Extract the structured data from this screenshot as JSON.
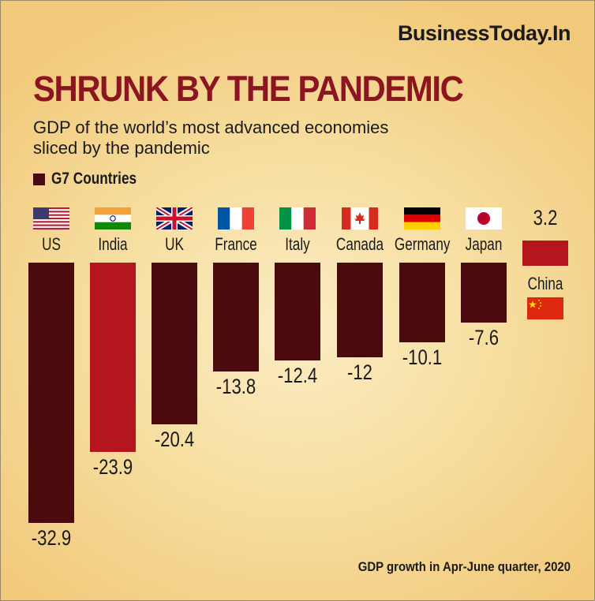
{
  "brand": "BusinessToday.In",
  "title": "SHRUNK BY THE PANDEMIC",
  "subtitle_line1": "GDP of the world’s most advanced economies",
  "subtitle_line2": "sliced by the pandemic",
  "legend_label": "G7 Countries",
  "footnote": "GDP growth in Apr-June quarter, 2020",
  "colors": {
    "g7_bar": "#4a0a0e",
    "highlight_bar": "#b5161e",
    "title": "#8b1520"
  },
  "chart_data": {
    "type": "bar",
    "title": "SHRUNK BY THE PANDEMIC",
    "ylabel": "GDP growth in Apr-June quarter, 2020",
    "categories": [
      "US",
      "India",
      "UK",
      "France",
      "Italy",
      "Canada",
      "Germany",
      "Japan",
      "China"
    ],
    "values": [
      -32.9,
      -23.9,
      -20.4,
      -13.8,
      -12.4,
      -12,
      -10.1,
      -7.6,
      3.2
    ],
    "value_labels": [
      "-32.9",
      "-23.9",
      "-20.4",
      "-13.8",
      "-12.4",
      "-12",
      "-10.1",
      "-7.6",
      "3.2"
    ],
    "g7": [
      true,
      false,
      true,
      true,
      true,
      true,
      true,
      true,
      false
    ],
    "flags": [
      "us-flag",
      "india-flag",
      "uk-flag",
      "france-flag",
      "italy-flag",
      "canada-flag",
      "germany-flag",
      "japan-flag",
      "china-flag"
    ],
    "ylim": [
      -32.9,
      3.2
    ],
    "grid": false,
    "legend": "top-left"
  }
}
